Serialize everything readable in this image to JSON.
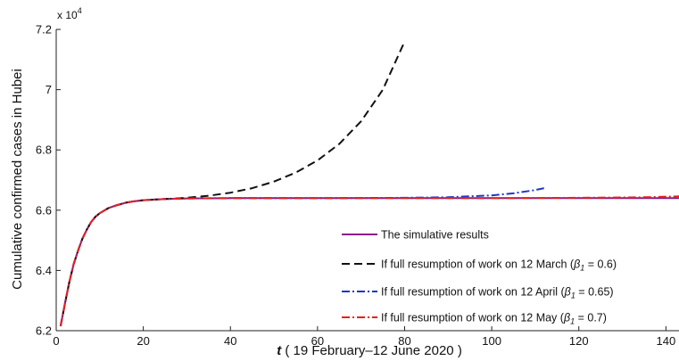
{
  "chart_data": {
    "type": "line",
    "title": "",
    "xlabel_italic": "t",
    "xlabel_rest": " ( 19 February–12 June 2020 )",
    "ylabel": "Cumulative confirmed cases in Hubei",
    "y_multiplier_base": "x 10",
    "y_multiplier_exp": "4",
    "xlim": [
      0,
      143
    ],
    "ylim": [
      6.2,
      7.2
    ],
    "x_ticks": [
      0,
      20,
      40,
      60,
      80,
      100,
      120,
      140
    ],
    "x_tick_labels": [
      "0",
      "20",
      "40",
      "60",
      "80",
      "100",
      "120",
      "140"
    ],
    "y_ticks": [
      6.2,
      6.4,
      6.6,
      6.8,
      7.0,
      7.2
    ],
    "y_tick_labels": [
      "6.2",
      "6.4",
      "6.6",
      "6.8",
      "7",
      "7.2"
    ],
    "grid": false,
    "legend_position": "bottom-right",
    "series": [
      {
        "name": "The simulative results",
        "color": "#8b1a8b",
        "style": "solid",
        "x": [
          1,
          2,
          3,
          4,
          5,
          6,
          7,
          8,
          9,
          10,
          12,
          14,
          16,
          18,
          20,
          25,
          30,
          40,
          60,
          80,
          100,
          120,
          143
        ],
        "y": [
          6.215,
          6.29,
          6.36,
          6.42,
          6.465,
          6.505,
          6.535,
          6.56,
          6.578,
          6.59,
          6.607,
          6.617,
          6.625,
          6.63,
          6.633,
          6.637,
          6.639,
          6.64,
          6.64,
          6.64,
          6.64,
          6.64,
          6.64
        ]
      },
      {
        "name": "If full resumption of work on 12 March (",
        "beta_label": "β",
        "beta_sub": "1",
        "beta_value": " = 0.6)",
        "color": "#111111",
        "style": "dashed",
        "x": [
          1,
          2,
          3,
          4,
          5,
          6,
          7,
          8,
          9,
          10,
          12,
          14,
          16,
          18,
          20,
          25,
          30,
          35,
          40,
          45,
          50,
          55,
          60,
          65,
          70,
          75,
          80
        ],
        "y": [
          6.215,
          6.29,
          6.36,
          6.42,
          6.465,
          6.505,
          6.535,
          6.56,
          6.578,
          6.59,
          6.607,
          6.617,
          6.625,
          6.63,
          6.633,
          6.637,
          6.641,
          6.648,
          6.658,
          6.673,
          6.695,
          6.725,
          6.765,
          6.82,
          6.895,
          7.0,
          7.16
        ]
      },
      {
        "name": "If full resumption of work on 12 April (",
        "beta_label": "β",
        "beta_sub": "1",
        "beta_value": " = 0.65)",
        "color": "#1f35c9",
        "style": "dashdot",
        "x": [
          1,
          2,
          3,
          4,
          5,
          6,
          7,
          8,
          9,
          10,
          12,
          14,
          16,
          18,
          20,
          25,
          30,
          40,
          60,
          80,
          90,
          100,
          105,
          110,
          112
        ],
        "y": [
          6.215,
          6.29,
          6.36,
          6.42,
          6.465,
          6.505,
          6.535,
          6.56,
          6.578,
          6.59,
          6.607,
          6.617,
          6.625,
          6.63,
          6.633,
          6.637,
          6.639,
          6.64,
          6.64,
          6.641,
          6.643,
          6.649,
          6.656,
          6.667,
          6.673
        ]
      },
      {
        "name": "If full resumption of work on 12 May (",
        "beta_label": "β",
        "beta_sub": "1",
        "beta_value": " = 0.7)",
        "color": "#e8201a",
        "style": "dashdot",
        "x": [
          1,
          2,
          3,
          4,
          5,
          6,
          7,
          8,
          9,
          10,
          12,
          14,
          16,
          18,
          20,
          25,
          30,
          40,
          60,
          80,
          100,
          120,
          135,
          143
        ],
        "y": [
          6.215,
          6.29,
          6.36,
          6.42,
          6.465,
          6.505,
          6.535,
          6.56,
          6.578,
          6.59,
          6.607,
          6.617,
          6.625,
          6.63,
          6.633,
          6.637,
          6.639,
          6.64,
          6.64,
          6.64,
          6.64,
          6.641,
          6.643,
          6.646
        ]
      }
    ]
  }
}
